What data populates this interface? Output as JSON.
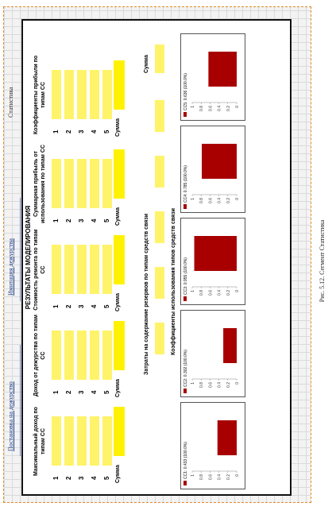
{
  "tabs": [
    "Постановка на дежурство",
    "Имитация дежурства",
    "Статистика"
  ],
  "panel": {
    "title": "РЕЗУЛЬТАТЫ МОДЕЛИРОВАНИЯ",
    "columns": [
      {
        "header": "Максимальный доход по типам СС",
        "rows": [
          "1",
          "2",
          "3",
          "4",
          "5"
        ],
        "sum_label": "Сумма"
      },
      {
        "header": "Доход от дежурства по типам СС",
        "rows": [
          "1",
          "2",
          "3",
          "4",
          "5"
        ],
        "sum_label": "Сумма"
      },
      {
        "header": "Стоимость ремонта по типам СС",
        "rows": [
          "1",
          "2",
          "3",
          "4",
          "5"
        ],
        "sum_label": "Сумма"
      },
      {
        "header": "Суммарная прибыль от использования по типам СС",
        "rows": [
          "1",
          "2",
          "3",
          "4",
          "5"
        ],
        "sum_label": "Сумма"
      },
      {
        "header": "Коэффициенты прибыли по типам СС",
        "rows": [
          "1",
          "2",
          "3",
          "4",
          "5"
        ],
        "sum_label": "Сумма"
      }
    ],
    "reserve_title": "Затраты на содержание резервов по типам средств связи",
    "reserve_sum_label": "Сумма",
    "usage_title": "Коэффициенты использования типов средств связи"
  },
  "chart_data": [
    {
      "type": "bar",
      "legend": "СС1: 0.433 (100.0%)",
      "values": [
        0.433
      ],
      "ylim": [
        0,
        1
      ],
      "ticks": [
        "0",
        "0.2",
        "0.4",
        "0.6",
        "0.8",
        "1"
      ]
    },
    {
      "type": "bar",
      "legend": "СС2: 0.302 (100.0%)",
      "values": [
        0.302
      ],
      "ylim": [
        0,
        1
      ],
      "ticks": [
        "0",
        "0.2",
        "0.4",
        "0.6",
        "0.8",
        "1"
      ]
    },
    {
      "type": "bar",
      "legend": "СС3: 0.955 (100.0%)",
      "values": [
        0.955
      ],
      "ylim": [
        0,
        1
      ],
      "ticks": [
        "0",
        "0.2",
        "0.4",
        "0.6",
        "0.8",
        "1"
      ]
    },
    {
      "type": "bar",
      "legend": "СС4: 0.785 (100.0%)",
      "values": [
        0.785
      ],
      "ylim": [
        0,
        1
      ],
      "ticks": [
        "0",
        "0.2",
        "0.4",
        "0.6",
        "0.8",
        "1"
      ]
    },
    {
      "type": "bar",
      "legend": "СС5: 0.636 (100.0%)",
      "values": [
        0.636
      ],
      "ylim": [
        0,
        1
      ],
      "ticks": [
        "0",
        "0.2",
        "0.4",
        "0.6",
        "0.8",
        "1"
      ]
    }
  ],
  "caption": "Рис. 5.12. Сегмент Статистика",
  "colors": {
    "accent_yellow": "#fff36a",
    "bar_red": "#a80000"
  }
}
